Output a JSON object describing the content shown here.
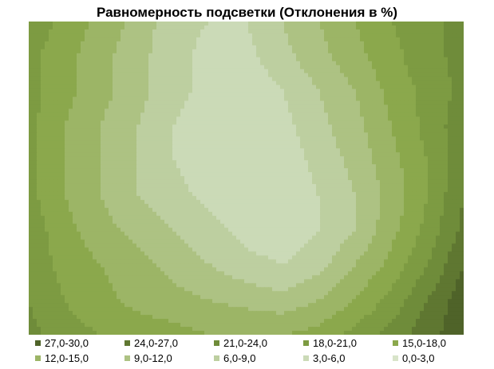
{
  "chart_data": {
    "type": "heatmap",
    "title": "Равномерность подсветки (Отклонения в %)",
    "grid": false,
    "legend_position": "bottom",
    "bands": [
      {
        "label": "27,0-30,0",
        "min": 27,
        "max": 30,
        "color": "#4f6329"
      },
      {
        "label": "24,0-27,0",
        "min": 24,
        "max": 27,
        "color": "#5f7731"
      },
      {
        "label": "21,0-24,0",
        "min": 21,
        "max": 24,
        "color": "#6f8c3a"
      },
      {
        "label": "18,0-21,0",
        "min": 18,
        "max": 21,
        "color": "#7d9b42"
      },
      {
        "label": "15,0-18,0",
        "min": 15,
        "max": 18,
        "color": "#8ba84c"
      },
      {
        "label": "12,0-15,0",
        "min": 12,
        "max": 15,
        "color": "#9cb566"
      },
      {
        "label": "9,0-12,0",
        "min": 9,
        "max": 12,
        "color": "#adc283"
      },
      {
        "label": "6,0-9,0",
        "min": 6,
        "max": 9,
        "color": "#bdcfa0"
      },
      {
        "label": "3,0-6,0",
        "min": 3,
        "max": 6,
        "color": "#cbdab7"
      },
      {
        "label": "0,0-3,0",
        "min": 0,
        "max": 3,
        "color": "#d8e4c9"
      }
    ],
    "values": [
      [
        20,
        17,
        14,
        11,
        7,
        6,
        6,
        9,
        12,
        15,
        18,
        20,
        22
      ],
      [
        19,
        16,
        13,
        10,
        7,
        5,
        5,
        8,
        11,
        14,
        17,
        20,
        22
      ],
      [
        19,
        16,
        13,
        10,
        7,
        5,
        4,
        6,
        9,
        12,
        16,
        19,
        22
      ],
      [
        19,
        15,
        12,
        9,
        6,
        4,
        4,
        5,
        8,
        11,
        15,
        19,
        23
      ],
      [
        19,
        15,
        12,
        9,
        6,
        4,
        3,
        4,
        7,
        10,
        14,
        18,
        23
      ],
      [
        19,
        15,
        12,
        9,
        7,
        5,
        4,
        4,
        6,
        9,
        13,
        18,
        24
      ],
      [
        20,
        16,
        13,
        11,
        9,
        7,
        5,
        4,
        6,
        9,
        14,
        19,
        25
      ],
      [
        20,
        17,
        15,
        13,
        11,
        9,
        7,
        6,
        8,
        12,
        16,
        21,
        27
      ],
      [
        21,
        18,
        16,
        14,
        13,
        12,
        11,
        10,
        12,
        15,
        19,
        24,
        29
      ],
      [
        22,
        19,
        18,
        17,
        16,
        15,
        15,
        15,
        16,
        19,
        22,
        26,
        29
      ]
    ]
  }
}
